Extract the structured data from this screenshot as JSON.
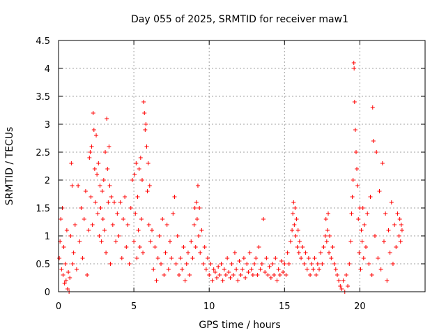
{
  "chart_data": {
    "type": "scatter",
    "title": "Day 055 of 2025, SRMTID for receiver maw1",
    "xlabel": "GPS time / hours",
    "ylabel": "SRMTID / TECUs",
    "xlim": [
      0,
      24.33
    ],
    "ylim": [
      0,
      4.5
    ],
    "x_ticks": [
      0,
      5,
      10,
      15,
      20
    ],
    "y_ticks": [
      0,
      0.5,
      1,
      1.5,
      2,
      2.5,
      3,
      3.5,
      4,
      4.5
    ],
    "x_tick_labels": [
      "0",
      "5",
      "10",
      "15",
      "20"
    ],
    "y_tick_labels": [
      "0",
      "0.5",
      "1",
      "1.5",
      "2",
      "2.5",
      "3",
      "3.5",
      "4",
      "4.5"
    ],
    "grid": true,
    "marker": "+",
    "series": [
      {
        "name": "SRMTID",
        "color": "#ff0000",
        "points": [
          [
            0.05,
            0.6
          ],
          [
            0.1,
            0.9
          ],
          [
            0.15,
            1.3
          ],
          [
            0.2,
            0.4
          ],
          [
            0.25,
            1.5
          ],
          [
            0.3,
            0.3
          ],
          [
            0.35,
            0.8
          ],
          [
            0.4,
            0.15
          ],
          [
            0.45,
            0.5
          ],
          [
            0.5,
            0.2
          ],
          [
            0.55,
            1.1
          ],
          [
            0.6,
            0.05
          ],
          [
            0.65,
            0.35
          ],
          [
            0.7,
            0.0
          ],
          [
            0.75,
            0.25
          ],
          [
            0.8,
            1.0
          ],
          [
            0.85,
            2.3
          ],
          [
            0.9,
            1.9
          ],
          [
            0.95,
            0.5
          ],
          [
            1.0,
            0.7
          ],
          [
            1.1,
            1.2
          ],
          [
            1.2,
            0.4
          ],
          [
            1.3,
            1.9
          ],
          [
            1.4,
            0.9
          ],
          [
            1.5,
            1.5
          ],
          [
            1.6,
            0.6
          ],
          [
            1.7,
            1.3
          ],
          [
            1.8,
            1.8
          ],
          [
            1.9,
            0.3
          ],
          [
            2.0,
            1.1
          ],
          [
            2.05,
            2.4
          ],
          [
            2.1,
            2.5
          ],
          [
            2.15,
            1.7
          ],
          [
            2.2,
            2.6
          ],
          [
            2.25,
            1.2
          ],
          [
            2.3,
            3.2
          ],
          [
            2.35,
            2.9
          ],
          [
            2.4,
            2.2
          ],
          [
            2.45,
            1.6
          ],
          [
            2.5,
            2.8
          ],
          [
            2.55,
            2.1
          ],
          [
            2.6,
            1.4
          ],
          [
            2.65,
            2.3
          ],
          [
            2.7,
            1.0
          ],
          [
            2.75,
            1.9
          ],
          [
            2.8,
            1.5
          ],
          [
            2.85,
            0.9
          ],
          [
            2.9,
            1.8
          ],
          [
            2.95,
            1.3
          ],
          [
            3.0,
            2.0
          ],
          [
            3.05,
            1.1
          ],
          [
            3.1,
            2.5
          ],
          [
            3.15,
            0.7
          ],
          [
            3.2,
            3.1
          ],
          [
            3.25,
            2.2
          ],
          [
            3.3,
            1.6
          ],
          [
            3.35,
            2.6
          ],
          [
            3.4,
            1.9
          ],
          [
            3.45,
            0.5
          ],
          [
            3.5,
            1.7
          ],
          [
            3.6,
            1.2
          ],
          [
            3.7,
            1.6
          ],
          [
            3.8,
            0.9
          ],
          [
            3.9,
            1.4
          ],
          [
            4.0,
            1.0
          ],
          [
            4.1,
            1.6
          ],
          [
            4.2,
            0.6
          ],
          [
            4.3,
            1.3
          ],
          [
            4.4,
            1.7
          ],
          [
            4.5,
            0.8
          ],
          [
            4.6,
            1.2
          ],
          [
            4.7,
            0.5
          ],
          [
            4.8,
            1.5
          ],
          [
            4.9,
            2.0
          ],
          [
            5.0,
            0.9
          ],
          [
            5.05,
            2.1
          ],
          [
            5.1,
            1.4
          ],
          [
            5.15,
            2.3
          ],
          [
            5.2,
            0.6
          ],
          [
            5.25,
            1.7
          ],
          [
            5.3,
            1.1
          ],
          [
            5.35,
            2.2
          ],
          [
            5.4,
            0.8
          ],
          [
            5.45,
            2.4
          ],
          [
            5.5,
            1.3
          ],
          [
            5.55,
            2.0
          ],
          [
            5.6,
            0.7
          ],
          [
            5.65,
            3.4
          ],
          [
            5.7,
            3.2
          ],
          [
            5.75,
            2.9
          ],
          [
            5.8,
            3.0
          ],
          [
            5.85,
            2.6
          ],
          [
            5.9,
            1.8
          ],
          [
            5.95,
            2.3
          ],
          [
            6.0,
            1.2
          ],
          [
            6.05,
            1.9
          ],
          [
            6.1,
            0.9
          ],
          [
            6.2,
            1.1
          ],
          [
            6.3,
            0.4
          ],
          [
            6.4,
            0.8
          ],
          [
            6.5,
            0.2
          ],
          [
            6.6,
            0.6
          ],
          [
            6.7,
            1.0
          ],
          [
            6.8,
            0.5
          ],
          [
            6.9,
            1.3
          ],
          [
            7.0,
            0.3
          ],
          [
            7.1,
            0.7
          ],
          [
            7.2,
            1.2
          ],
          [
            7.3,
            0.4
          ],
          [
            7.4,
            0.9
          ],
          [
            7.5,
            0.6
          ],
          [
            7.6,
            1.4
          ],
          [
            7.7,
            1.7
          ],
          [
            7.8,
            0.5
          ],
          [
            7.9,
            1.0
          ],
          [
            8.0,
            0.3
          ],
          [
            8.1,
            0.6
          ],
          [
            8.2,
            0.4
          ],
          [
            8.3,
            0.8
          ],
          [
            8.4,
            0.2
          ],
          [
            8.5,
            0.5
          ],
          [
            8.6,
            0.7
          ],
          [
            8.7,
            0.3
          ],
          [
            8.8,
            0.9
          ],
          [
            8.9,
            0.6
          ],
          [
            9.0,
            1.2
          ],
          [
            9.05,
            1.5
          ],
          [
            9.1,
            0.8
          ],
          [
            9.15,
            1.6
          ],
          [
            9.2,
            1.3
          ],
          [
            9.25,
            1.9
          ],
          [
            9.3,
            1.0
          ],
          [
            9.35,
            1.5
          ],
          [
            9.4,
            0.7
          ],
          [
            9.5,
            1.1
          ],
          [
            9.6,
            0.5
          ],
          [
            9.7,
            0.8
          ],
          [
            9.8,
            0.4
          ],
          [
            9.9,
            0.6
          ],
          [
            10.0,
            0.3
          ],
          [
            10.1,
            0.5
          ],
          [
            10.2,
            0.2
          ],
          [
            10.3,
            0.4
          ],
          [
            10.4,
            0.35
          ],
          [
            10.5,
            0.25
          ],
          [
            10.6,
            0.45
          ],
          [
            10.7,
            0.3
          ],
          [
            10.8,
            0.5
          ],
          [
            10.9,
            0.2
          ],
          [
            11.0,
            0.4
          ],
          [
            11.1,
            0.3
          ],
          [
            11.2,
            0.6
          ],
          [
            11.3,
            0.35
          ],
          [
            11.4,
            0.25
          ],
          [
            11.5,
            0.5
          ],
          [
            11.6,
            0.3
          ],
          [
            11.7,
            0.7
          ],
          [
            11.8,
            0.4
          ],
          [
            11.9,
            0.2
          ],
          [
            12.0,
            0.55
          ],
          [
            12.1,
            0.3
          ],
          [
            12.2,
            0.4
          ],
          [
            12.3,
            0.6
          ],
          [
            12.4,
            0.25
          ],
          [
            12.5,
            0.5
          ],
          [
            12.6,
            0.35
          ],
          [
            12.7,
            0.7
          ],
          [
            12.8,
            0.4
          ],
          [
            12.9,
            0.3
          ],
          [
            13.0,
            0.5
          ],
          [
            13.1,
            0.6
          ],
          [
            13.2,
            0.3
          ],
          [
            13.3,
            0.8
          ],
          [
            13.4,
            0.4
          ],
          [
            13.5,
            0.5
          ],
          [
            13.6,
            1.3
          ],
          [
            13.7,
            0.35
          ],
          [
            13.8,
            0.6
          ],
          [
            13.9,
            0.3
          ],
          [
            14.0,
            0.45
          ],
          [
            14.1,
            0.25
          ],
          [
            14.2,
            0.5
          ],
          [
            14.3,
            0.3
          ],
          [
            14.4,
            0.6
          ],
          [
            14.5,
            0.2
          ],
          [
            14.6,
            0.4
          ],
          [
            14.7,
            0.3
          ],
          [
            14.8,
            0.55
          ],
          [
            14.9,
            0.35
          ],
          [
            15.0,
            0.5
          ],
          [
            15.1,
            0.3
          ],
          [
            15.2,
            0.7
          ],
          [
            15.3,
            0.5
          ],
          [
            15.4,
            0.9
          ],
          [
            15.5,
            1.1
          ],
          [
            15.55,
            1.4
          ],
          [
            15.6,
            1.6
          ],
          [
            15.65,
            1.2
          ],
          [
            15.7,
            1.5
          ],
          [
            15.75,
            1.0
          ],
          [
            15.8,
            1.3
          ],
          [
            15.85,
            0.8
          ],
          [
            15.9,
            1.1
          ],
          [
            15.95,
            0.7
          ],
          [
            16.0,
            0.9
          ],
          [
            16.1,
            0.6
          ],
          [
            16.2,
            0.8
          ],
          [
            16.3,
            0.5
          ],
          [
            16.4,
            0.7
          ],
          [
            16.5,
            0.4
          ],
          [
            16.6,
            0.6
          ],
          [
            16.7,
            0.3
          ],
          [
            16.8,
            0.5
          ],
          [
            16.9,
            0.4
          ],
          [
            17.0,
            0.6
          ],
          [
            17.1,
            0.3
          ],
          [
            17.2,
            0.5
          ],
          [
            17.3,
            0.4
          ],
          [
            17.4,
            0.7
          ],
          [
            17.5,
            0.5
          ],
          [
            17.6,
            0.8
          ],
          [
            17.7,
            1.0
          ],
          [
            17.75,
            1.3
          ],
          [
            17.8,
            0.9
          ],
          [
            17.85,
            1.1
          ],
          [
            17.9,
            1.4
          ],
          [
            17.95,
            0.7
          ],
          [
            18.0,
            1.0
          ],
          [
            18.1,
            0.6
          ],
          [
            18.2,
            0.8
          ],
          [
            18.3,
            0.5
          ],
          [
            18.4,
            0.4
          ],
          [
            18.5,
            0.3
          ],
          [
            18.6,
            0.2
          ],
          [
            18.7,
            0.1
          ],
          [
            18.8,
            0.05
          ],
          [
            18.9,
            0.2
          ],
          [
            19.0,
            0.0
          ],
          [
            19.1,
            0.3
          ],
          [
            19.2,
            0.1
          ],
          [
            19.3,
            0.5
          ],
          [
            19.4,
            0.9
          ],
          [
            19.45,
            1.4
          ],
          [
            19.5,
            1.7
          ],
          [
            19.55,
            2.0
          ],
          [
            19.6,
            4.1
          ],
          [
            19.62,
            4.0
          ],
          [
            19.65,
            3.4
          ],
          [
            19.7,
            2.9
          ],
          [
            19.75,
            2.5
          ],
          [
            19.8,
            2.2
          ],
          [
            19.85,
            1.9
          ],
          [
            19.9,
            1.3
          ],
          [
            19.95,
            0.7
          ],
          [
            20.0,
            1.5
          ],
          [
            20.05,
            0.4
          ],
          [
            20.1,
            1.1
          ],
          [
            20.15,
            0.9
          ],
          [
            20.2,
            1.5
          ],
          [
            20.25,
            0.6
          ],
          [
            20.3,
            1.2
          ],
          [
            20.4,
            0.8
          ],
          [
            20.5,
            1.4
          ],
          [
            20.6,
            0.5
          ],
          [
            20.7,
            1.7
          ],
          [
            20.8,
            0.3
          ],
          [
            20.85,
            3.3
          ],
          [
            20.9,
            2.7
          ],
          [
            21.0,
            1.0
          ],
          [
            21.1,
            2.5
          ],
          [
            21.2,
            0.6
          ],
          [
            21.3,
            1.8
          ],
          [
            21.4,
            0.4
          ],
          [
            21.5,
            2.3
          ],
          [
            21.6,
            0.9
          ],
          [
            21.7,
            1.4
          ],
          [
            21.8,
            0.2
          ],
          [
            21.9,
            1.1
          ],
          [
            22.0,
            0.7
          ],
          [
            22.1,
            1.6
          ],
          [
            22.2,
            0.5
          ],
          [
            22.3,
            1.2
          ],
          [
            22.4,
            0.8
          ],
          [
            22.5,
            1.4
          ],
          [
            22.6,
            1.0
          ],
          [
            22.65,
            1.3
          ],
          [
            22.7,
            0.9
          ],
          [
            22.75,
            1.2
          ],
          [
            22.8,
            1.1
          ]
        ]
      }
    ]
  }
}
